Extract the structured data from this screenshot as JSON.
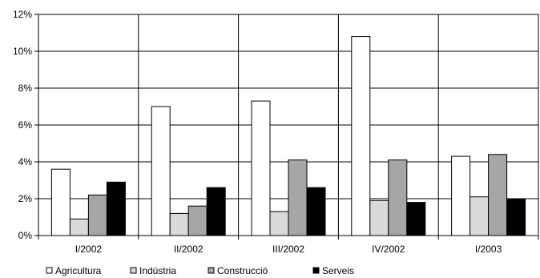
{
  "chart_data": {
    "type": "bar",
    "categories": [
      "I/2002",
      "II/2002",
      "III/2002",
      "IV/2002",
      "I/2003"
    ],
    "series": [
      {
        "name": "Agricultura",
        "values": [
          3.6,
          7.0,
          7.3,
          10.8,
          4.3
        ],
        "color": "#ffffff"
      },
      {
        "name": "Indústria",
        "values": [
          0.9,
          1.2,
          1.3,
          1.9,
          2.1
        ],
        "color": "#d9d9d9"
      },
      {
        "name": "Construcció",
        "values": [
          2.2,
          1.6,
          4.1,
          4.1,
          4.4
        ],
        "color": "#a6a6a6"
      },
      {
        "name": "Serveis",
        "values": [
          2.9,
          2.6,
          2.6,
          1.8,
          2.0
        ],
        "color": "#000000"
      }
    ],
    "y_ticks": [
      "0%",
      "2%",
      "4%",
      "6%",
      "8%",
      "10%",
      "12%"
    ],
    "ylim": [
      0,
      12
    ],
    "grid": true,
    "legend_position": "bottom"
  }
}
